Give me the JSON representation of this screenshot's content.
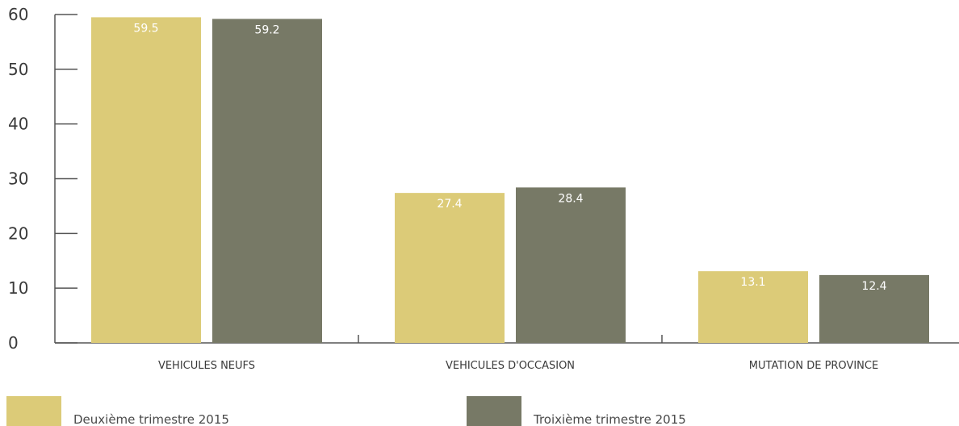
{
  "chart_data": {
    "type": "bar",
    "categories": [
      "VEHICULES NEUFS",
      "VEHICULES D'OCCASION",
      "MUTATION DE PROVINCE"
    ],
    "series": [
      {
        "name": "Deuxième trimestre 2015",
        "values": [
          59.5,
          27.4,
          13.1
        ],
        "color": "#dccb78"
      },
      {
        "name": "Troixième trimestre 2015",
        "values": [
          59.2,
          28.4,
          12.4
        ],
        "color": "#777966"
      }
    ],
    "data_labels": [
      [
        "59.5",
        "27.4",
        "13.1"
      ],
      [
        "59.2",
        "28.4",
        "12.4"
      ]
    ],
    "y_ticks": [
      0,
      10,
      20,
      30,
      40,
      50,
      60
    ],
    "ylim": [
      0,
      60
    ],
    "title": "",
    "xlabel": "",
    "ylabel": "",
    "grid": false,
    "legend_position": "bottom",
    "axis_color": "#555555"
  }
}
